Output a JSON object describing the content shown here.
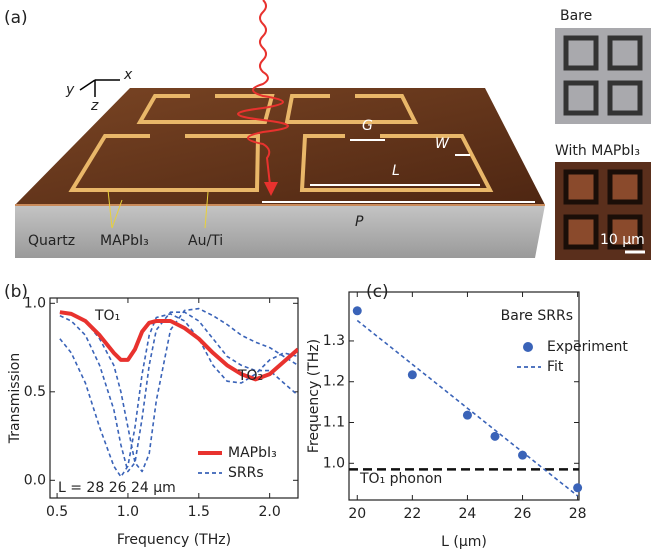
{
  "panel_labels": [
    "(a)",
    "(b)",
    "(c)"
  ],
  "illustration": {
    "axes": [
      "x",
      "y",
      "z"
    ],
    "dimensions": [
      "G",
      "W",
      "L",
      "P"
    ],
    "layers": [
      "Quartz",
      "MAPbI₃",
      "Au/Ti"
    ],
    "photos": {
      "bare": "Bare",
      "coated": "With MAPbI₃",
      "scale_bar": "10 μm"
    }
  },
  "chart_data": [
    {
      "type": "line",
      "xlabel": "Frequency (THz)",
      "ylabel": "Transmission",
      "xlim": [
        0.45,
        2.2
      ],
      "ylim": [
        -0.1,
        1.03
      ],
      "xticks": [
        {
          "value": 0.5,
          "label": "0.5"
        },
        {
          "value": 1.0,
          "label": "1.0"
        },
        {
          "value": 1.5,
          "label": "1.5"
        },
        {
          "value": 2.0,
          "label": "2.0"
        }
      ],
      "yticks": [
        {
          "value": 0.0,
          "label": "0.0"
        },
        {
          "value": 0.5,
          "label": "0.5"
        },
        {
          "value": 1.0,
          "label": "1.0"
        }
      ],
      "legend": "lower right",
      "annotations": [
        "TO₁",
        "TO₂",
        "L = 28 26 24 μm"
      ],
      "x": [
        0.52,
        0.6,
        0.7,
        0.8,
        0.9,
        0.95,
        1.0,
        1.05,
        1.1,
        1.15,
        1.2,
        1.3,
        1.4,
        1.5,
        1.6,
        1.7,
        1.8,
        1.9,
        2.0,
        2.1,
        2.2
      ],
      "series": [
        {
          "name": "MAPbI₃",
          "color": "#e8322e",
          "style": "solid",
          "values": [
            0.95,
            0.94,
            0.9,
            0.82,
            0.72,
            0.68,
            0.68,
            0.74,
            0.84,
            0.89,
            0.9,
            0.9,
            0.86,
            0.8,
            0.72,
            0.65,
            0.6,
            0.57,
            0.6,
            0.67,
            0.74
          ]
        },
        {
          "name": "SRRs",
          "color": "#3a63b8",
          "style": "dashed",
          "values": [
            0.8,
            0.72,
            0.55,
            0.3,
            0.08,
            0.02,
            0.08,
            0.3,
            0.6,
            0.82,
            0.92,
            0.94,
            0.9,
            0.8,
            0.65,
            0.56,
            0.55,
            0.6,
            0.68,
            0.72,
            0.7
          ]
        },
        {
          "name": "SRRs",
          "color": "#3a63b8",
          "style": "dashed",
          "values": [
            0.93,
            0.9,
            0.82,
            0.65,
            0.4,
            0.2,
            0.05,
            0.1,
            0.35,
            0.65,
            0.85,
            0.95,
            0.95,
            0.9,
            0.8,
            0.7,
            0.65,
            0.62,
            0.62,
            0.55,
            0.48
          ]
        },
        {
          "name": "SRRs",
          "color": "#3a63b8",
          "style": "dashed",
          "values": [
            0.95,
            0.94,
            0.9,
            0.8,
            0.65,
            0.5,
            0.3,
            0.1,
            0.05,
            0.15,
            0.45,
            0.85,
            0.96,
            0.97,
            0.93,
            0.88,
            0.82,
            0.78,
            0.75,
            0.7,
            0.65
          ]
        }
      ]
    },
    {
      "type": "scatter",
      "xlabel": "L (μm)",
      "ylabel": "Frequency (THz)",
      "xlim": [
        19.7,
        28.05
      ],
      "ylim": [
        0.91,
        1.42
      ],
      "xticks": [
        20,
        22,
        24,
        26,
        28
      ],
      "yticks": [
        {
          "value": 1.0,
          "label": "1.0"
        },
        {
          "value": 1.1,
          "label": "1.1"
        },
        {
          "value": 1.2,
          "label": "1.2"
        },
        {
          "value": 1.3,
          "label": "1.3"
        }
      ],
      "legend": "upper right",
      "annotations": [
        "Bare SRRs",
        "TO₁ phonon"
      ],
      "reference_line": 0.985,
      "series": [
        {
          "name": "Experiment",
          "color": "#3a63b8",
          "style": "markers",
          "x": [
            20,
            22,
            24,
            25,
            26,
            28
          ],
          "values": [
            1.374,
            1.217,
            1.118,
            1.066,
            1.02,
            0.94
          ]
        },
        {
          "name": "Fit",
          "color": "#3a63b8",
          "style": "dashed",
          "x": [
            20,
            28
          ],
          "values": [
            1.35,
            0.92
          ]
        }
      ]
    }
  ]
}
